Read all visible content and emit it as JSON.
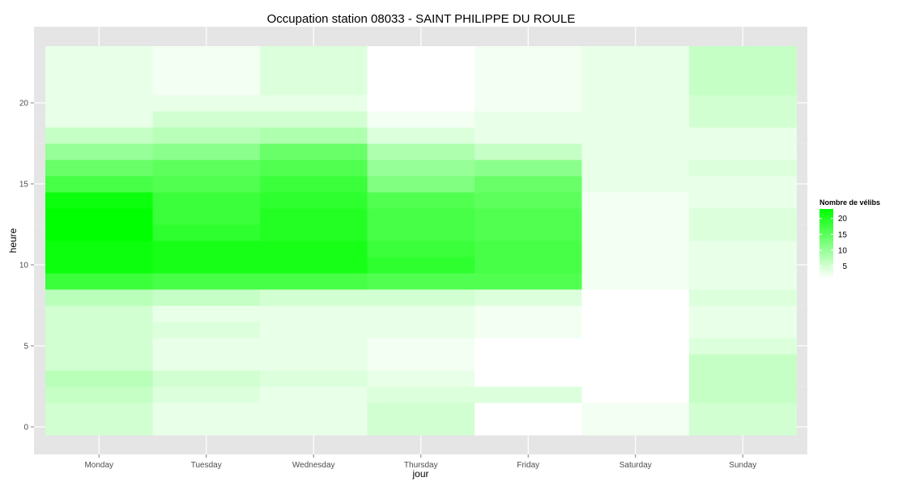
{
  "chart_data": {
    "type": "heatmap",
    "title": "Occupation station 08033 - SAINT PHILIPPE DU ROULE",
    "xlabel": "jour",
    "ylabel": "heure",
    "categories": [
      "Monday",
      "Tuesday",
      "Wednesday",
      "Thursday",
      "Friday",
      "Saturday",
      "Sunday"
    ],
    "y_range": [
      0,
      23
    ],
    "y_ticks": [
      0,
      5,
      10,
      15,
      20
    ],
    "y_tick_labels": [
      "0",
      "5",
      "10",
      "15",
      "20"
    ],
    "grid": true,
    "legend": {
      "title": "Nombre de vélibs",
      "ticks": [
        5,
        10,
        15,
        20
      ],
      "tick_labels": [
        "5",
        "10",
        "15",
        "20"
      ],
      "range": [
        1,
        23
      ],
      "low_color": "#ffffff",
      "high_color": "#00ff00",
      "position": "right"
    },
    "values": [
      [
        5,
        3,
        3,
        5,
        1,
        2,
        5
      ],
      [
        5,
        3,
        3,
        5,
        1,
        2,
        5
      ],
      [
        6,
        4,
        3,
        4,
        4,
        1,
        6
      ],
      [
        7,
        5,
        4,
        3,
        1,
        1,
        6
      ],
      [
        5,
        3,
        3,
        2,
        1,
        1,
        6
      ],
      [
        5,
        3,
        3,
        2,
        1,
        1,
        4
      ],
      [
        5,
        4,
        3,
        3,
        2,
        1,
        3
      ],
      [
        5,
        3,
        3,
        3,
        2,
        1,
        3
      ],
      [
        7,
        6,
        5,
        5,
        4,
        1,
        4
      ],
      [
        18,
        17,
        17,
        16,
        16,
        2,
        3
      ],
      [
        22,
        21,
        21,
        19,
        17,
        2,
        3
      ],
      [
        22,
        21,
        21,
        18,
        17,
        2,
        3
      ],
      [
        23,
        19,
        20,
        17,
        16,
        2,
        4
      ],
      [
        23,
        18,
        20,
        17,
        16,
        2,
        4
      ],
      [
        22,
        18,
        19,
        16,
        15,
        2,
        3
      ],
      [
        17,
        16,
        18,
        12,
        14,
        3,
        3
      ],
      [
        14,
        15,
        16,
        10,
        11,
        3,
        4
      ],
      [
        10,
        11,
        14,
        8,
        6,
        3,
        3
      ],
      [
        6,
        7,
        8,
        4,
        3,
        3,
        3
      ],
      [
        3,
        5,
        5,
        2,
        3,
        3,
        5
      ],
      [
        3,
        3,
        3,
        1,
        2,
        3,
        5
      ],
      [
        3,
        2,
        4,
        1,
        2,
        3,
        6
      ],
      [
        3,
        2,
        4,
        1,
        2,
        3,
        6
      ],
      [
        3,
        2,
        4,
        1,
        2,
        3,
        6
      ]
    ]
  }
}
